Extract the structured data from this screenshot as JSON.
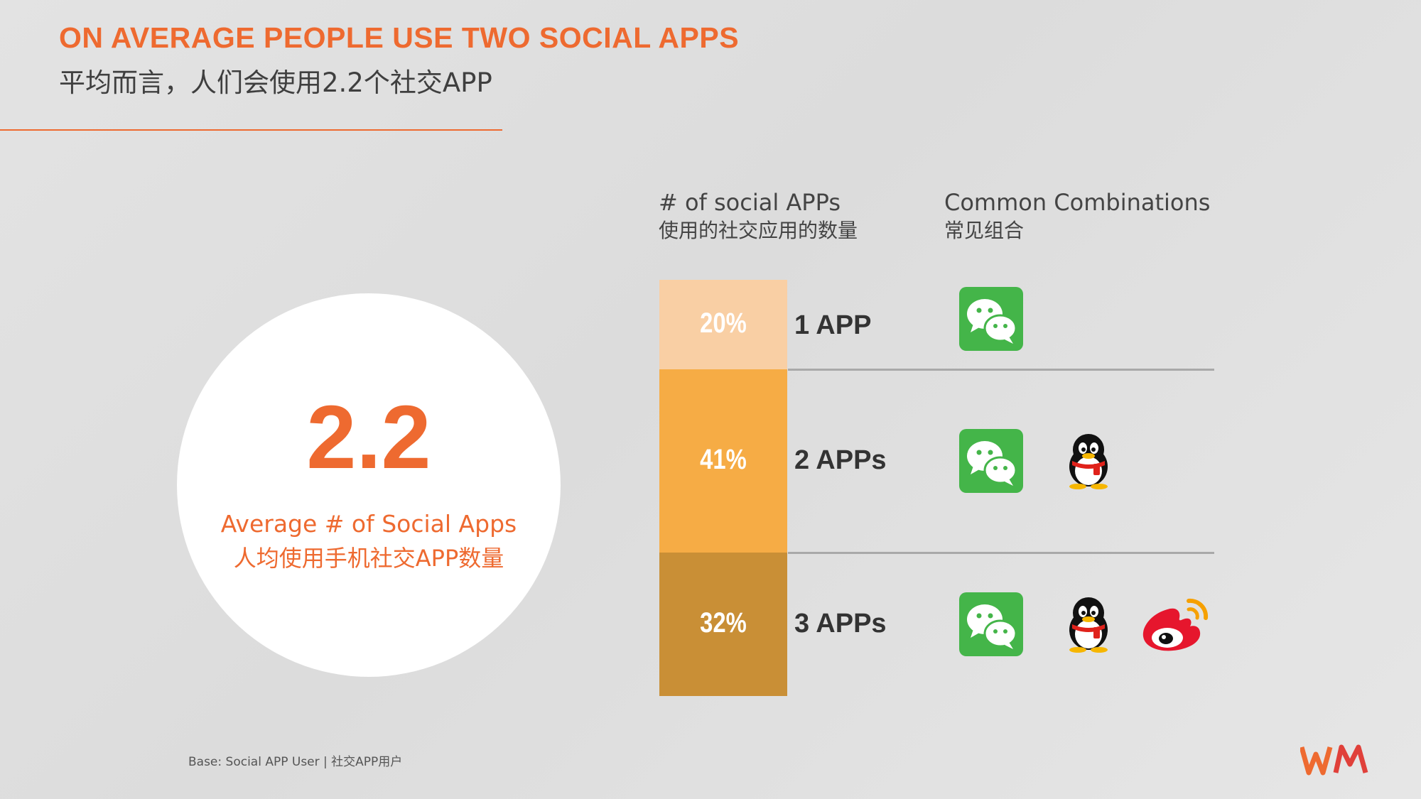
{
  "title_en": "ON AVERAGE PEOPLE USE TWO SOCIAL APPS",
  "title_cn": "平均而言，人们会使用2.2个社交APP",
  "average": {
    "value": "2.2",
    "label_en": "Average # of Social Apps",
    "label_cn": "人均使用手机社交APP数量"
  },
  "columns": {
    "count_en": "# of social APPs",
    "count_cn": "使用的社交应用的数量",
    "combo_en": "Common Combinations",
    "combo_cn": "常见组合"
  },
  "chart_data": {
    "type": "bar",
    "orientation": "stacked-vertical",
    "categories": [
      "1 APP",
      "2 APPs",
      "3 APPs"
    ],
    "values": [
      20,
      41,
      32
    ],
    "value_labels": [
      "20%",
      "41%",
      "32%"
    ],
    "unit": "%",
    "colors": [
      "#f9cfa4",
      "#f6ac45",
      "#c98f36"
    ],
    "combinations": [
      [
        "wechat-icon"
      ],
      [
        "wechat-icon",
        "qq-icon"
      ],
      [
        "wechat-icon",
        "qq-icon",
        "weibo-icon"
      ]
    ]
  },
  "footnote": "Base: Social APP User | 社交APP用户",
  "colors": {
    "accent": "#ee6a30",
    "wechat": "#44b549",
    "weibo": "#e6162d"
  }
}
